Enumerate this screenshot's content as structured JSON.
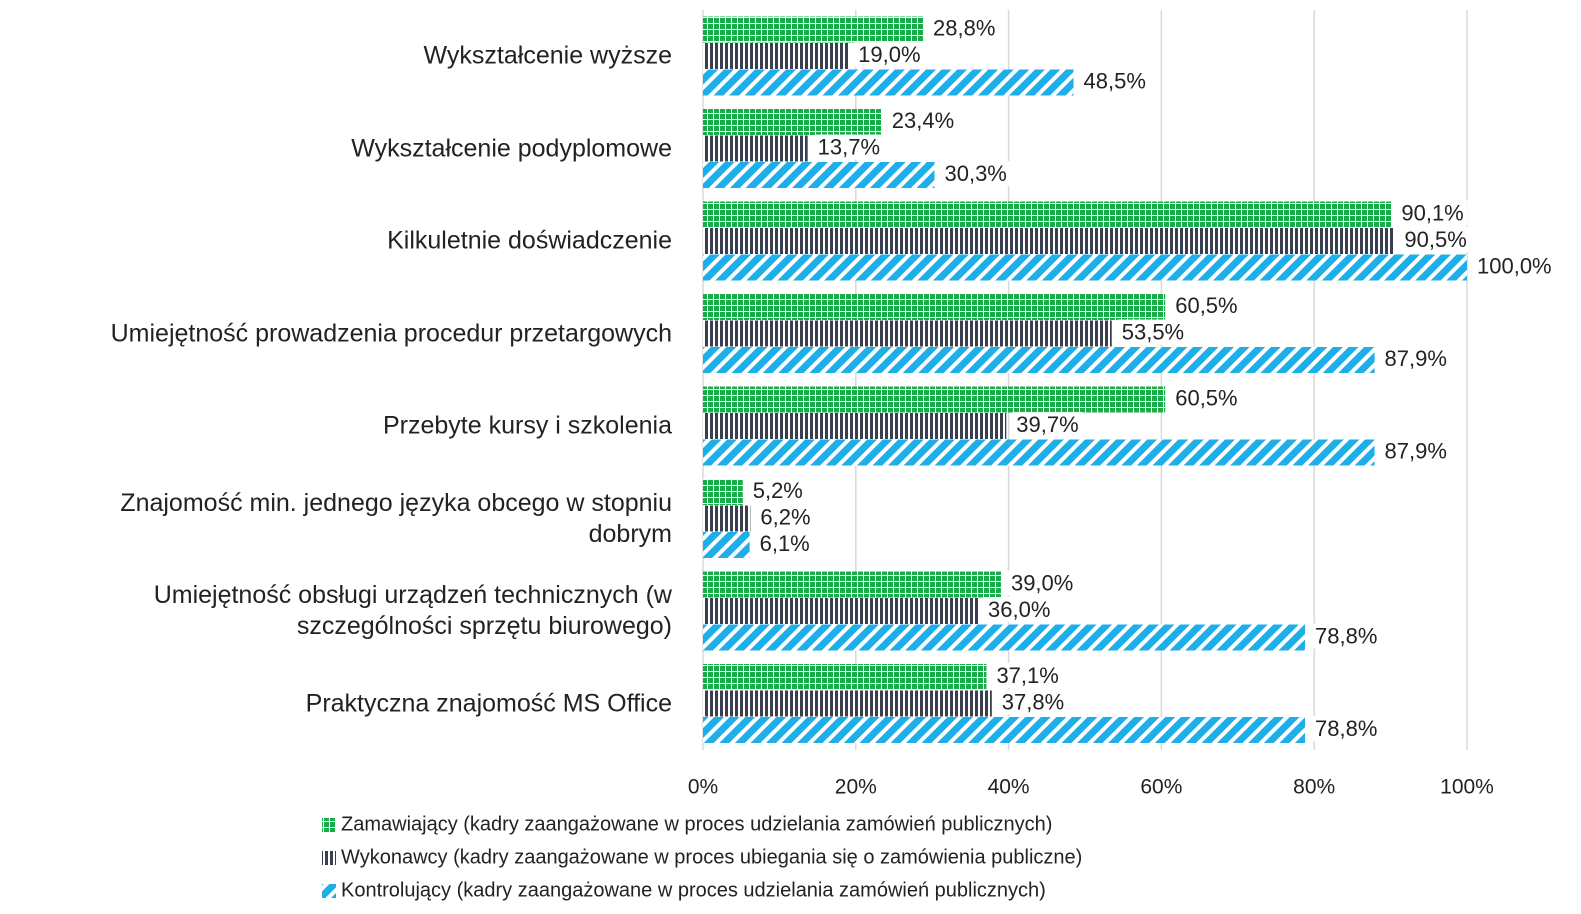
{
  "chart_data": {
    "type": "bar",
    "orientation": "horizontal",
    "categories": [
      "Wykształcenie wyższe",
      "Wykształcenie podyplomowe",
      "Kilkuletnie doświadczenie",
      "Umiejętność prowadzenia procedur przetargowych",
      "Przebyte kursy i szkolenia",
      "Znajomość min. jednego języka obcego w stopniu\ndobrym",
      "Umiejętność obsługi urządzeń technicznych (w\nszczególności sprzętu biurowego)",
      "Praktyczna znajomość MS Office"
    ],
    "series": [
      {
        "name": "Zamawiający (kadry zaangażowane w proces udzielania zamówień publicznych)",
        "color": "#1aab4b",
        "pattern": "grid",
        "values": [
          28.8,
          23.4,
          90.1,
          60.5,
          60.5,
          5.2,
          39.0,
          37.1
        ],
        "value_labels": [
          "28,8%",
          "23,4%",
          "90,1%",
          "60,5%",
          "60,5%",
          "5,2%",
          "39,0%",
          "37,1%"
        ]
      },
      {
        "name": "Wykonawcy (kadry zaangażowane w proces ubiegania się o zamówienia publiczne)",
        "color": "#3a3f4f",
        "pattern": "vertical",
        "values": [
          19.0,
          13.7,
          90.5,
          53.5,
          39.7,
          6.2,
          36.0,
          37.8
        ],
        "value_labels": [
          "19,0%",
          "13,7%",
          "90,5%",
          "53,5%",
          "39,7%",
          "6,2%",
          "36,0%",
          "37,8%"
        ]
      },
      {
        "name": "Kontrolujący (kadry zaangażowane w proces udzielania zamówień publicznych)",
        "color": "#1eaee8",
        "pattern": "diagonal",
        "values": [
          48.5,
          30.3,
          100.0,
          87.9,
          87.9,
          6.1,
          78.8,
          78.8
        ],
        "value_labels": [
          "48,5%",
          "30,3%",
          "100,0%",
          "87,9%",
          "87,9%",
          "6,1%",
          "78,8%",
          "78,8%"
        ]
      }
    ],
    "xlim": [
      0,
      100
    ],
    "xticks": [
      {
        "value": 0,
        "label": "0%"
      },
      {
        "value": 20,
        "label": "20%"
      },
      {
        "value": 40,
        "label": "40%"
      },
      {
        "value": 60,
        "label": "60%"
      },
      {
        "value": 80,
        "label": "80%"
      },
      {
        "value": 100,
        "label": "100%"
      }
    ],
    "grid": true,
    "legend": "bottom"
  }
}
